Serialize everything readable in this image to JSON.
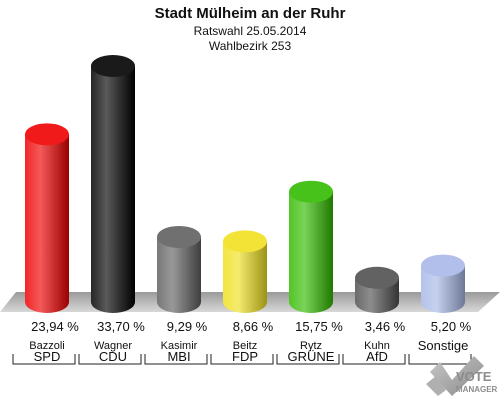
{
  "chart_data": {
    "type": "bar",
    "title": "Stadt Mülheim an der Ruhr",
    "subtitle_1": "Ratswahl 25.05.2014",
    "subtitle_2": "Wahlbezirk 253",
    "categories": [
      "SPD",
      "CDU",
      "MBI",
      "FDP",
      "GRÜNE",
      "AfD",
      "Sonstige"
    ],
    "candidates": [
      "Bazzoli",
      "Wagner",
      "Kasimir",
      "Beitz",
      "Rytz",
      "Kuhn",
      ""
    ],
    "values": [
      23.94,
      33.7,
      9.29,
      8.66,
      15.75,
      3.46,
      5.2
    ],
    "value_labels": [
      "23,94 %",
      "33,70 %",
      "9,29 %",
      "8,66 %",
      "15,75 %",
      "3,46 %",
      "5,20 %"
    ],
    "colors": [
      "#ee0000",
      "#000000",
      "#606060",
      "#f0e020",
      "#33bb00",
      "#505050",
      "#a8b8e8"
    ],
    "ylim": [
      0,
      33.7
    ],
    "xlabel": "",
    "ylabel": "",
    "grid": false,
    "legend": "none"
  },
  "logo": {
    "line1": "VOTE",
    "line2": "MANAGER"
  }
}
